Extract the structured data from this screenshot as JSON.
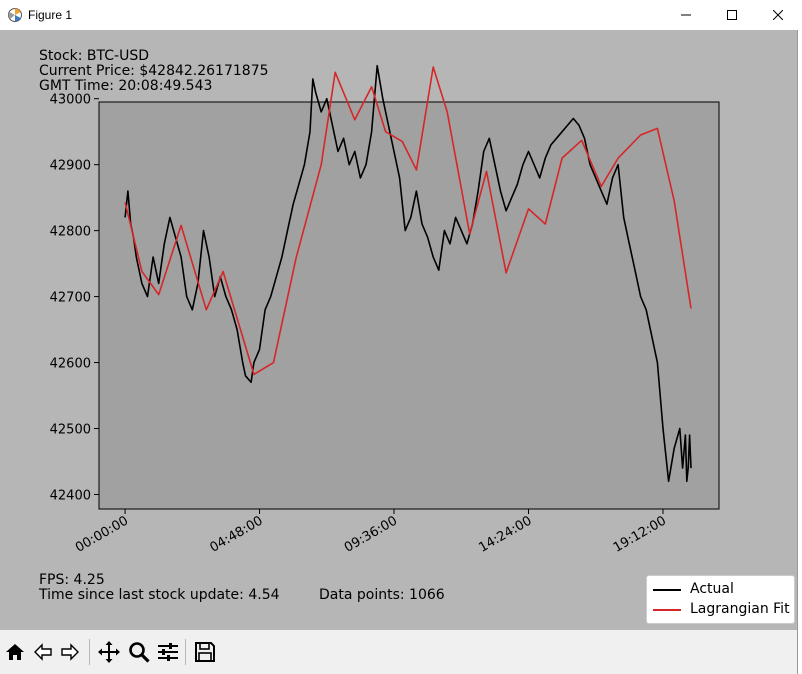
{
  "window": {
    "title": "Figure 1"
  },
  "info": {
    "stock": "Stock: BTC-USD",
    "price": "Current Price: $42842.26171875",
    "time": "GMT Time: 20:08:49.543",
    "fps": "FPS: 4.25",
    "since_update": "Time since last stock update: 4.54",
    "data_points": "Data points: 1066"
  },
  "legend": {
    "actual": {
      "label": "Actual",
      "color": "#000000"
    },
    "fit": {
      "label": "Lagrangian Fit",
      "color": "#d62728"
    }
  },
  "toolbar": {
    "icons": [
      "home-icon",
      "back-icon",
      "forward-icon",
      "pan-icon",
      "zoom-icon",
      "configure-icon",
      "save-icon"
    ]
  },
  "colors": {
    "figure_bg": "#b6b6b6",
    "axes_bg": "#a1a1a1",
    "actual": "#000000",
    "fit": "#d62728"
  },
  "chart_data": {
    "type": "line",
    "title": "",
    "xlabel": "",
    "ylabel": "",
    "x_ticks": [
      "00:00:00",
      "04:48:00",
      "09:36:00",
      "14:24:00",
      "19:12:00"
    ],
    "y_ticks": [
      43000,
      42900,
      42800,
      42700,
      42600,
      42500,
      42400
    ],
    "xlim_hours": [
      -0.93,
      21.2
    ],
    "ylim": [
      42378,
      42995
    ],
    "grid": false,
    "legend_position": "lower-right (outside axes)",
    "series": [
      {
        "name": "Actual",
        "color": "#000000",
        "x_hours": [
          0.0,
          0.1,
          0.2,
          0.3,
          0.4,
          0.5,
          0.6,
          0.8,
          1.0,
          1.2,
          1.4,
          1.6,
          1.8,
          2.0,
          2.2,
          2.4,
          2.6,
          2.8,
          3.0,
          3.2,
          3.4,
          3.6,
          3.8,
          4.0,
          4.2,
          4.3,
          4.5,
          4.6,
          4.8,
          5.0,
          5.2,
          5.4,
          5.6,
          5.8,
          6.0,
          6.2,
          6.4,
          6.6,
          6.7,
          6.8,
          7.0,
          7.2,
          7.4,
          7.6,
          7.8,
          8.0,
          8.2,
          8.4,
          8.6,
          8.8,
          9.0,
          9.2,
          9.4,
          9.6,
          9.8,
          10.0,
          10.2,
          10.4,
          10.6,
          10.8,
          11.0,
          11.2,
          11.4,
          11.6,
          11.8,
          12.0,
          12.2,
          12.4,
          12.6,
          12.8,
          13.0,
          13.2,
          13.4,
          13.6,
          13.8,
          14.0,
          14.2,
          14.4,
          14.6,
          14.8,
          15.0,
          15.2,
          15.4,
          15.6,
          15.8,
          16.0,
          16.2,
          16.4,
          16.6,
          16.8,
          17.0,
          17.2,
          17.4,
          17.6,
          17.8,
          18.0,
          18.2,
          18.4,
          18.6,
          18.8,
          19.0,
          19.2,
          19.4,
          19.6,
          19.8,
          19.9,
          20.0,
          20.05,
          20.1,
          20.15,
          20.2
        ],
        "values": [
          42820,
          42860,
          42810,
          42790,
          42760,
          42740,
          42720,
          42700,
          42760,
          42720,
          42780,
          42820,
          42790,
          42760,
          42700,
          42680,
          42720,
          42800,
          42760,
          42700,
          42730,
          42700,
          42680,
          42650,
          42600,
          42580,
          42570,
          42600,
          42620,
          42680,
          42700,
          42730,
          42760,
          42800,
          42840,
          42870,
          42900,
          42950,
          43030,
          43010,
          42980,
          43000,
          42960,
          42920,
          42940,
          42900,
          42920,
          42880,
          42900,
          42950,
          43050,
          43000,
          42960,
          42920,
          42880,
          42800,
          42820,
          42860,
          42810,
          42790,
          42760,
          42740,
          42800,
          42780,
          42820,
          42800,
          42780,
          42810,
          42860,
          42920,
          42940,
          42900,
          42860,
          42830,
          42850,
          42870,
          42900,
          42920,
          42900,
          42880,
          42910,
          42930,
          42940,
          42950,
          42960,
          42970,
          42960,
          42940,
          42900,
          42880,
          42860,
          42840,
          42880,
          42900,
          42820,
          42780,
          42740,
          42700,
          42680,
          42640,
          42600,
          42500,
          42420,
          42470,
          42500,
          42440,
          42490,
          42420,
          42440,
          42490,
          42440
        ]
      },
      {
        "name": "Lagrangian Fit",
        "color": "#d62728",
        "x_hours": [
          0.0,
          0.6,
          1.2,
          2.0,
          2.9,
          3.5,
          4.6,
          5.3,
          6.1,
          7.0,
          7.5,
          8.2,
          8.8,
          9.3,
          9.9,
          10.4,
          11.0,
          11.5,
          12.3,
          12.9,
          13.6,
          14.4,
          15.0,
          15.6,
          16.3,
          17.0,
          17.6,
          18.4,
          19.0,
          19.6,
          20.2
        ],
        "values": [
          42843,
          42738,
          42703,
          42808,
          42680,
          42738,
          42582,
          42600,
          42758,
          42900,
          43040,
          42968,
          43018,
          42950,
          42935,
          42892,
          43048,
          42980,
          42795,
          42890,
          42736,
          42833,
          42810,
          42910,
          42937,
          42867,
          42910,
          42945,
          42955,
          42845,
          42682
        ]
      }
    ]
  }
}
